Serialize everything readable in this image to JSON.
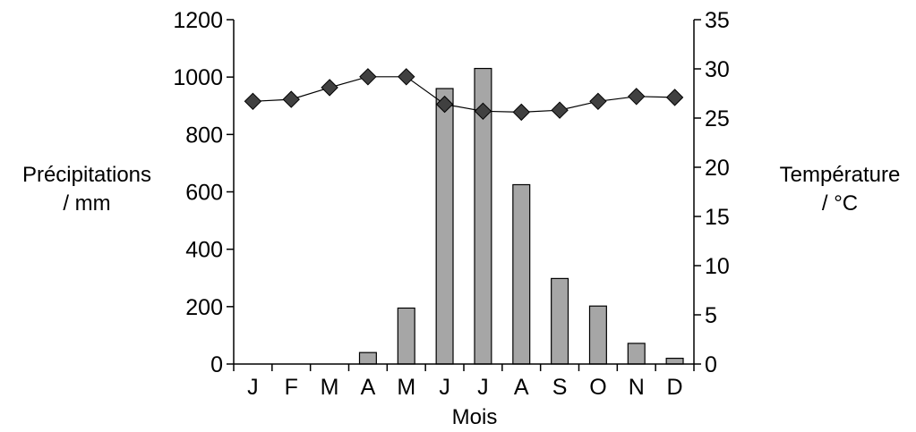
{
  "chart_data": {
    "type": "bar",
    "categories": [
      "J",
      "F",
      "M",
      "A",
      "M",
      "J",
      "J",
      "A",
      "S",
      "O",
      "N",
      "D"
    ],
    "series": [
      {
        "kind": "bar",
        "axis": "left",
        "values": [
          0,
          0,
          0,
          40,
          195,
          960,
          1030,
          625,
          298,
          202,
          72,
          20
        ]
      },
      {
        "kind": "line",
        "axis": "right",
        "marker": "diamond",
        "values": [
          26.7,
          26.9,
          28.1,
          29.2,
          29.2,
          26.4,
          25.7,
          25.6,
          25.8,
          26.7,
          27.2,
          27.1
        ]
      }
    ],
    "xlabel": "Mois",
    "ylabel_left": [
      "Précipitations",
      "/ mm"
    ],
    "ylabel_right": [
      "Température",
      "/ °C"
    ],
    "ylim_left": [
      0,
      1200
    ],
    "yticks_left": [
      0,
      200,
      400,
      600,
      800,
      1000,
      1200
    ],
    "ylim_right": [
      0,
      35
    ],
    "yticks_right": [
      0,
      5,
      10,
      15,
      20,
      25,
      30,
      35
    ],
    "grid": false,
    "legend": "none",
    "colors": {
      "bar_fill": "#a6a6a6",
      "marker_fill": "#404040",
      "line": "#000000"
    }
  }
}
